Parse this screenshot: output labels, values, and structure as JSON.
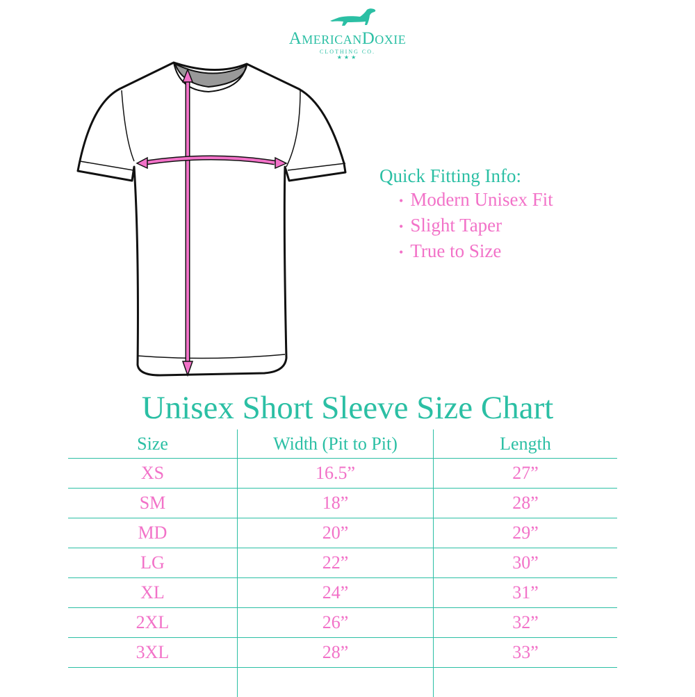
{
  "logo": {
    "brand": "AmericanDoxie",
    "subtitle": "CLOTHING CO.",
    "stars": "★★★"
  },
  "fit_info": {
    "heading": "Quick Fitting Info:",
    "items": [
      "Modern Unisex Fit",
      "Slight Taper",
      "True to Size"
    ]
  },
  "chart": {
    "title": "Unisex Short Sleeve Size Chart",
    "headers": [
      "Size",
      "Width (Pit to Pit)",
      "Length"
    ],
    "rows": [
      [
        "XS",
        "16.5”",
        "27”"
      ],
      [
        "SM",
        "18”",
        "28”"
      ],
      [
        "MD",
        "20”",
        "29”"
      ],
      [
        "LG",
        "22”",
        "30”"
      ],
      [
        "XL",
        "24”",
        "31”"
      ],
      [
        "2XL",
        "26”",
        "32”"
      ],
      [
        "3XL",
        "28”",
        "33”"
      ]
    ]
  },
  "colors": {
    "teal": "#2bbfa4",
    "pink": "#f272c8"
  }
}
